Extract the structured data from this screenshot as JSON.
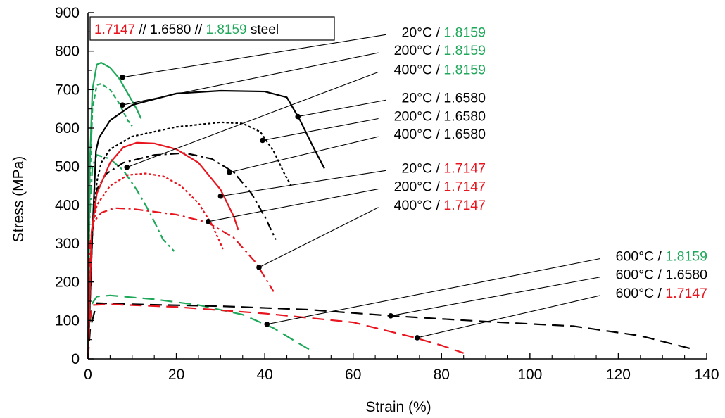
{
  "colors": {
    "red": "#e8141e",
    "black": "#000000",
    "green": "#1fa85a"
  },
  "chart_data": {
    "type": "line",
    "title": "",
    "xlabel": "Strain (%)",
    "ylabel": "Stress (MPa)",
    "xlim": [
      0,
      140
    ],
    "ylim": [
      0,
      900
    ],
    "xticks": [
      0,
      20,
      40,
      60,
      80,
      100,
      120,
      140
    ],
    "yticks": [
      0,
      100,
      200,
      300,
      400,
      500,
      600,
      700,
      800,
      900
    ],
    "grid": false,
    "legend": {
      "position": "top-left",
      "parts": [
        {
          "text": "1.7147",
          "color": "red"
        },
        {
          "text": " // ",
          "color": "black"
        },
        {
          "text": "1.6580",
          "color": "black"
        },
        {
          "text": " // ",
          "color": "black"
        },
        {
          "text": "1.8159",
          "color": "green"
        },
        {
          "text": " steel",
          "color": "black"
        }
      ]
    },
    "series": [
      {
        "name": "20°C / 1.8159",
        "temp": "20°C",
        "steel": "1.8159",
        "color": "green",
        "dash": "solid",
        "points": [
          [
            0,
            0
          ],
          [
            0.4,
            500
          ],
          [
            1,
            700
          ],
          [
            2,
            765
          ],
          [
            3,
            770
          ],
          [
            5,
            757
          ],
          [
            7,
            730
          ],
          [
            9,
            690
          ],
          [
            11,
            650
          ],
          [
            12,
            625
          ]
        ],
        "marker": [
          7.8,
          732
        ],
        "label_at": [
          62,
          850
        ]
      },
      {
        "name": "200°C / 1.8159",
        "temp": "200°C",
        "steel": "1.8159",
        "color": "green",
        "dash": "dash",
        "points": [
          [
            0,
            0
          ],
          [
            0.4,
            450
          ],
          [
            1,
            650
          ],
          [
            2,
            712
          ],
          [
            3,
            715
          ],
          [
            5,
            700
          ],
          [
            7,
            665
          ],
          [
            9,
            620
          ],
          [
            10,
            605
          ]
        ],
        "marker": [
          7.8,
          660
        ],
        "label_at": [
          62,
          803
        ]
      },
      {
        "name": "400°C / 1.8159",
        "temp": "400°C",
        "steel": "1.8159",
        "color": "green",
        "dash": "dashdot",
        "points": [
          [
            0,
            0
          ],
          [
            0.3,
            350
          ],
          [
            1,
            500
          ],
          [
            2,
            530
          ],
          [
            5,
            520
          ],
          [
            8,
            490
          ],
          [
            11,
            440
          ],
          [
            14,
            380
          ],
          [
            17,
            310
          ],
          [
            19.5,
            280
          ]
        ],
        "marker": null,
        "label_at": [
          62,
          753
        ]
      },
      {
        "name": "20°C / 1.6580",
        "temp": "20°C",
        "steel": "1.6580",
        "color": "black",
        "dash": "solid",
        "points": [
          [
            0,
            0
          ],
          [
            1,
            330
          ],
          [
            1.8,
            540
          ],
          [
            2.5,
            575
          ],
          [
            5,
            620
          ],
          [
            10,
            660
          ],
          [
            20,
            690
          ],
          [
            30,
            697
          ],
          [
            40,
            695
          ],
          [
            45,
            680
          ],
          [
            48,
            620
          ],
          [
            51,
            550
          ],
          [
            53.5,
            495
          ]
        ],
        "marker": [
          47.5,
          630
        ],
        "label_at": [
          62,
          680
        ]
      },
      {
        "name": "200°C / 1.6580",
        "temp": "200°C",
        "steel": "1.6580",
        "color": "black",
        "dash": "dot",
        "points": [
          [
            0,
            0
          ],
          [
            1,
            330
          ],
          [
            2,
            460
          ],
          [
            3,
            510
          ],
          [
            5,
            545
          ],
          [
            10,
            578
          ],
          [
            20,
            603
          ],
          [
            30,
            615
          ],
          [
            35,
            612
          ],
          [
            39,
            590
          ],
          [
            42,
            540
          ],
          [
            44.5,
            480
          ],
          [
            46,
            450
          ]
        ],
        "marker": [
          39.5,
          568
        ],
        "label_at": [
          62,
          632
        ]
      },
      {
        "name": "400°C / 1.6580",
        "temp": "400°C",
        "steel": "1.6580",
        "color": "black",
        "dash": "dashdot",
        "points": [
          [
            0,
            0
          ],
          [
            1,
            330
          ],
          [
            2,
            440
          ],
          [
            4,
            480
          ],
          [
            8,
            510
          ],
          [
            15,
            530
          ],
          [
            22,
            535
          ],
          [
            28,
            520
          ],
          [
            33,
            485
          ],
          [
            37,
            430
          ],
          [
            40,
            370
          ],
          [
            42.5,
            310
          ]
        ],
        "marker": [
          32,
          485
        ],
        "label_at": [
          62,
          585
        ]
      },
      {
        "name": "20°C / 1.7147",
        "temp": "20°C",
        "steel": "1.7147",
        "color": "red",
        "dash": "solid",
        "points": [
          [
            0,
            0
          ],
          [
            0.8,
            330
          ],
          [
            2,
            430
          ],
          [
            5,
            510
          ],
          [
            8,
            550
          ],
          [
            11,
            562
          ],
          [
            15,
            560
          ],
          [
            20,
            545
          ],
          [
            25,
            510
          ],
          [
            30,
            440
          ],
          [
            33,
            370
          ],
          [
            34,
            335
          ]
        ],
        "marker": [
          30,
          423
        ],
        "label_at": [
          62,
          497
        ]
      },
      {
        "name": "200°C / 1.7147",
        "temp": "200°C",
        "steel": "1.7147",
        "color": "red",
        "dash": "dot",
        "points": [
          [
            0,
            0
          ],
          [
            0.8,
            320
          ],
          [
            2,
            400
          ],
          [
            5,
            450
          ],
          [
            9,
            478
          ],
          [
            13,
            482
          ],
          [
            17,
            475
          ],
          [
            21,
            450
          ],
          [
            25,
            405
          ],
          [
            28,
            350
          ],
          [
            30,
            300
          ],
          [
            30.5,
            285
          ]
        ],
        "marker": null,
        "label_at": [
          62,
          449
        ]
      },
      {
        "name": "400°C / 1.7147",
        "temp": "400°C",
        "steel": "1.7147",
        "color": "red",
        "dash": "dashdot",
        "points": [
          [
            0,
            0
          ],
          [
            0.5,
            300
          ],
          [
            1.2,
            355
          ],
          [
            3,
            380
          ],
          [
            6,
            392
          ],
          [
            10,
            390
          ],
          [
            20,
            375
          ],
          [
            27,
            355
          ],
          [
            33,
            315
          ],
          [
            38,
            250
          ],
          [
            42,
            175
          ]
        ],
        "marker": [
          38.7,
          238
        ],
        "label_at": [
          62,
          401
        ]
      },
      {
        "name": "600°C / 1.8159",
        "temp": "600°C",
        "steel": "1.8159",
        "color": "green",
        "dash": "longdash",
        "points": [
          [
            0,
            0
          ],
          [
            0.3,
            80
          ],
          [
            1,
            145
          ],
          [
            2,
            162
          ],
          [
            5,
            165
          ],
          [
            15,
            155
          ],
          [
            25,
            140
          ],
          [
            35,
            115
          ],
          [
            42,
            80
          ],
          [
            47,
            45
          ],
          [
            50,
            25
          ]
        ],
        "marker": [
          40.5,
          90
        ],
        "label_at": [
          94,
          268
        ]
      },
      {
        "name": "600°C / 1.6580",
        "temp": "600°C",
        "steel": "1.6580",
        "color": "black",
        "dash": "longdash",
        "points": [
          [
            0,
            0
          ],
          [
            0.5,
            80
          ],
          [
            2,
            145
          ],
          [
            10,
            142
          ],
          [
            30,
            137
          ],
          [
            50,
            128
          ],
          [
            68.5,
            112
          ],
          [
            90,
            97
          ],
          [
            110,
            85
          ],
          [
            125,
            60
          ],
          [
            137,
            25
          ]
        ],
        "marker": [
          68.5,
          112
        ],
        "label_at": [
          94,
          220
        ]
      },
      {
        "name": "600°C / 1.7147",
        "temp": "600°C",
        "steel": "1.7147",
        "color": "red",
        "dash": "longdash",
        "points": [
          [
            0,
            0
          ],
          [
            0.4,
            100
          ],
          [
            1,
            140
          ],
          [
            5,
            142
          ],
          [
            20,
            135
          ],
          [
            40,
            118
          ],
          [
            60,
            95
          ],
          [
            74,
            55
          ],
          [
            80,
            35
          ],
          [
            85,
            15
          ]
        ],
        "marker": [
          74.5,
          55
        ],
        "label_at": [
          94,
          172
        ]
      }
    ]
  }
}
